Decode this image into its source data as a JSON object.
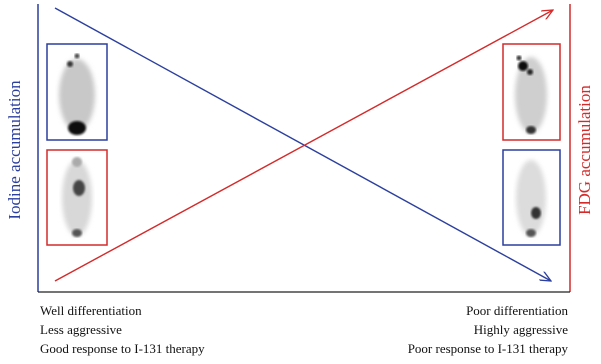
{
  "labels": {
    "left_axis": "Iodine accumulation",
    "right_axis": "FDG accumulation"
  },
  "left_notes": [
    "Well differentiation",
    "Less aggressive",
    "Good response to I-131 therapy"
  ],
  "right_notes": [
    "Poor differentiation",
    "Highly aggressive",
    "Poor response to I-131 therapy"
  ]
}
